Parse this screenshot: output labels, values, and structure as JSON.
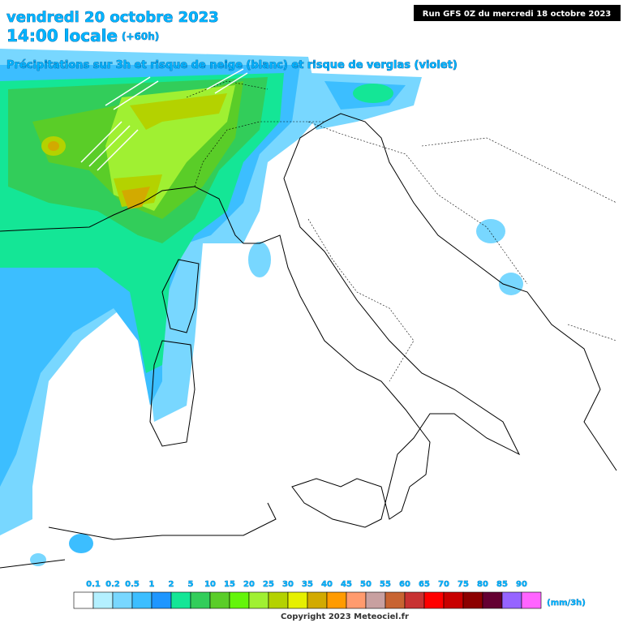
{
  "header": {
    "date": "vendredi 20 octobre 2023",
    "time": "14:00 locale",
    "lead": "(+60h)",
    "subtitle": "Précipitations sur 3h et risque de neige (blanc) et risque de verglas (violet)",
    "run": "Run GFS 0Z du mercredi 18 octobre 2023"
  },
  "legend": {
    "labels": [
      "0.1",
      "0.2",
      "0.5",
      "1",
      "2",
      "5",
      "10",
      "15",
      "20",
      "25",
      "30",
      "35",
      "40",
      "45",
      "50",
      "55",
      "60",
      "65",
      "70",
      "75",
      "80",
      "85",
      "90"
    ],
    "colors": [
      "#ffffff",
      "#b4f0ff",
      "#78d7ff",
      "#3cbeff",
      "#1e96ff",
      "#14e696",
      "#32cd5a",
      "#5acd28",
      "#64f50a",
      "#a0f032",
      "#b4d200",
      "#e6f000",
      "#d2aa00",
      "#ff9b00",
      "#ff9b6e",
      "#c8a0a0",
      "#c86432",
      "#c83232",
      "#ff0000",
      "#c80000",
      "#8c0000",
      "#640032",
      "#9664ff",
      "#ff64ff"
    ],
    "unit": "(mm/3h)"
  },
  "copyright": "Copyright 2023 Meteociel.fr"
}
